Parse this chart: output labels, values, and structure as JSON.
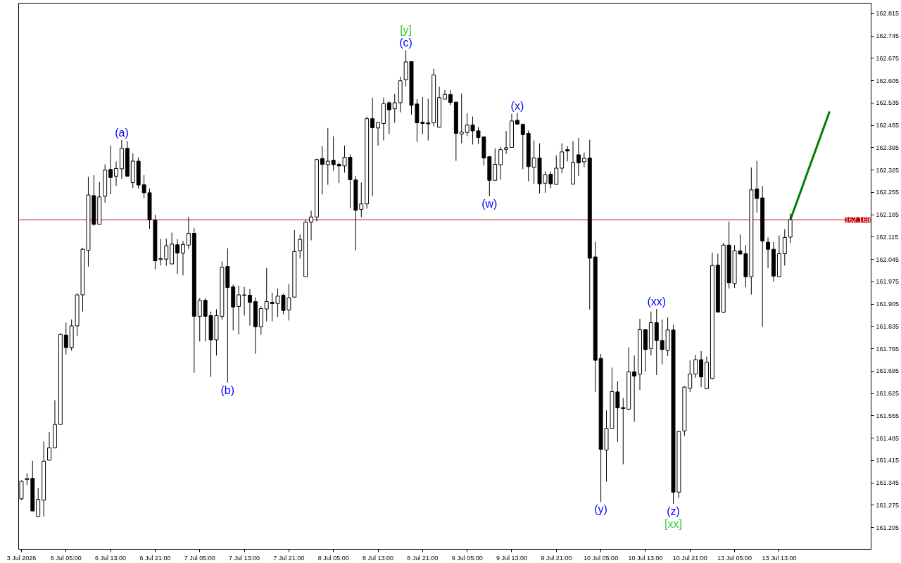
{
  "chart_data": {
    "type": "candlestick",
    "categories": [
      "3 Jul 2026",
      null,
      null,
      null,
      null,
      null,
      null,
      null,
      "6 Jul 05:00",
      null,
      null,
      null,
      null,
      null,
      null,
      null,
      "6 Jul 13:00",
      null,
      null,
      null,
      null,
      null,
      null,
      null,
      "6 Jul 21:00",
      null,
      null,
      null,
      null,
      null,
      null,
      null,
      "7 Jul 05:00",
      null,
      null,
      null,
      null,
      null,
      null,
      null,
      "7 Jul 13:00",
      null,
      null,
      null,
      null,
      null,
      null,
      null,
      "7 Jul 21:00",
      null,
      null,
      null,
      null,
      null,
      null,
      null,
      "8 Jul 05:00",
      null,
      null,
      null,
      null,
      null,
      null,
      null,
      "8 Jul 13:00",
      null,
      null,
      null,
      null,
      null,
      null,
      null,
      "8 Jul 21:00",
      null,
      null,
      null,
      null,
      null,
      null,
      null,
      "9 Jul 05:00",
      null,
      null,
      null,
      null,
      null,
      null,
      null,
      "9 Jul 13:00",
      null,
      null,
      null,
      null,
      null,
      null,
      null,
      "9 Jul 21:00",
      null,
      null,
      null,
      null,
      null,
      null,
      null,
      "10 Jul 05:00",
      null,
      null,
      null,
      null,
      null,
      null,
      null,
      "10 Jul 13:00",
      null,
      null,
      null,
      null,
      null,
      null,
      null,
      "10 Jul 21:00",
      null,
      null,
      null,
      null,
      null,
      null,
      null,
      "13 Jul 05:00",
      null,
      null,
      null,
      null,
      null,
      null,
      null,
      "13 Jul 13:00",
      null,
      null,
      null,
      null,
      null,
      null,
      null,
      null,
      null,
      null,
      null,
      null,
      null,
      null,
      null,
      null
    ],
    "color": "#000000",
    "ohlc": [
      [
        161.295,
        161.353,
        161.291,
        161.35
      ],
      [
        161.355,
        161.376,
        161.338,
        161.359
      ],
      [
        161.359,
        161.414,
        161.256,
        161.257
      ],
      [
        161.24,
        161.329,
        161.239,
        161.293
      ],
      [
        161.291,
        161.474,
        161.24,
        161.413
      ],
      [
        161.416,
        161.504,
        161.416,
        161.455
      ],
      [
        161.455,
        161.604,
        161.453,
        161.528
      ],
      [
        161.528,
        161.814,
        161.528,
        161.81
      ],
      [
        161.808,
        161.847,
        161.747,
        161.769
      ],
      [
        161.769,
        161.857,
        161.759,
        161.837
      ],
      [
        161.837,
        161.939,
        161.804,
        161.934
      ],
      [
        161.934,
        162.082,
        161.882,
        162.077
      ],
      [
        162.074,
        162.304,
        162.023,
        162.247
      ],
      [
        162.245,
        162.309,
        162.151,
        162.155
      ],
      [
        162.155,
        162.288,
        162.155,
        162.241
      ],
      [
        162.243,
        162.343,
        162.223,
        162.325
      ],
      [
        162.327,
        162.402,
        162.249,
        162.302
      ],
      [
        162.306,
        162.352,
        162.276,
        162.33
      ],
      [
        162.329,
        162.42,
        162.298,
        162.393
      ],
      [
        162.393,
        162.416,
        162.304,
        162.306
      ],
      [
        162.286,
        162.378,
        162.269,
        162.353
      ],
      [
        162.353,
        162.365,
        162.267,
        162.278
      ],
      [
        162.279,
        162.309,
        162.237,
        162.254
      ],
      [
        162.254,
        162.267,
        162.141,
        162.169
      ],
      [
        162.169,
        162.185,
        162.014,
        162.041
      ],
      [
        162.045,
        162.11,
        162.026,
        162.048
      ],
      [
        162.046,
        162.11,
        162.025,
        162.088
      ],
      [
        162.031,
        162.129,
        162.031,
        162.093
      ],
      [
        162.091,
        162.109,
        161.999,
        162.065
      ],
      [
        162.065,
        162.103,
        161.995,
        162.092
      ],
      [
        162.09,
        162.178,
        162.078,
        162.127
      ],
      [
        162.127,
        162.143,
        161.69,
        161.867
      ],
      [
        161.867,
        161.924,
        161.788,
        161.917
      ],
      [
        161.917,
        161.924,
        161.788,
        161.867
      ],
      [
        161.869,
        161.882,
        161.677,
        161.793
      ],
      [
        161.793,
        161.889,
        161.744,
        161.869
      ],
      [
        161.867,
        162.039,
        161.856,
        162.02
      ],
      [
        162.023,
        162.08,
        161.659,
        161.957
      ],
      [
        161.959,
        161.966,
        161.823,
        161.896
      ],
      [
        161.898,
        161.963,
        161.81,
        161.934
      ],
      [
        161.934,
        161.959,
        161.869,
        161.933
      ],
      [
        161.933,
        161.952,
        161.838,
        161.911
      ],
      [
        161.913,
        161.926,
        161.75,
        161.834
      ],
      [
        161.834,
        161.898,
        161.809,
        161.891
      ],
      [
        161.89,
        162.018,
        161.851,
        161.913
      ],
      [
        161.911,
        161.941,
        161.851,
        161.907
      ],
      [
        161.907,
        161.954,
        161.865,
        161.93
      ],
      [
        161.933,
        161.938,
        161.873,
        161.885
      ],
      [
        161.887,
        161.968,
        161.854,
        161.925
      ],
      [
        161.927,
        162.137,
        161.927,
        162.07
      ],
      [
        162.072,
        162.124,
        162.048,
        162.108
      ],
      [
        161.991,
        162.17,
        161.991,
        162.162
      ],
      [
        162.162,
        162.198,
        162.105,
        162.178
      ],
      [
        162.178,
        162.36,
        162.165,
        162.358
      ],
      [
        162.361,
        162.4,
        162.249,
        162.343
      ],
      [
        162.342,
        162.457,
        162.279,
        162.353
      ],
      [
        162.356,
        162.431,
        162.323,
        162.342
      ],
      [
        162.343,
        162.348,
        162.284,
        162.338
      ],
      [
        162.338,
        162.402,
        162.317,
        162.365
      ],
      [
        162.365,
        162.374,
        162.205,
        162.295
      ],
      [
        162.294,
        162.306,
        162.074,
        162.199
      ],
      [
        162.202,
        162.286,
        162.177,
        162.219
      ],
      [
        162.219,
        162.493,
        162.204,
        162.486
      ],
      [
        162.486,
        162.552,
        162.243,
        162.458
      ],
      [
        162.457,
        162.474,
        162.402,
        162.474
      ],
      [
        162.471,
        162.552,
        162.418,
        162.533
      ],
      [
        162.536,
        162.541,
        162.438,
        162.514
      ],
      [
        162.517,
        162.564,
        162.473,
        162.536
      ],
      [
        162.536,
        162.618,
        162.506,
        162.605
      ],
      [
        162.608,
        162.701,
        162.587,
        162.664
      ],
      [
        162.665,
        162.665,
        162.499,
        162.528
      ],
      [
        162.532,
        162.547,
        162.413,
        162.473
      ],
      [
        162.475,
        162.554,
        162.438,
        162.471
      ],
      [
        162.473,
        162.549,
        162.418,
        162.47
      ],
      [
        162.473,
        162.642,
        162.462,
        162.623
      ],
      [
        162.459,
        162.586,
        162.459,
        162.552
      ],
      [
        162.547,
        162.576,
        162.547,
        162.562
      ],
      [
        162.562,
        162.576,
        162.528,
        162.537
      ],
      [
        162.538,
        162.538,
        162.354,
        162.44
      ],
      [
        162.438,
        162.565,
        162.409,
        162.444
      ],
      [
        162.443,
        162.503,
        162.431,
        162.466
      ],
      [
        162.466,
        162.493,
        162.405,
        162.448
      ],
      [
        162.448,
        162.46,
        162.407,
        162.427
      ],
      [
        162.429,
        162.431,
        162.339,
        162.363
      ],
      [
        162.367,
        162.369,
        162.243,
        162.293
      ],
      [
        162.293,
        162.393,
        162.293,
        162.343
      ],
      [
        162.342,
        162.398,
        162.295,
        162.389
      ],
      [
        162.39,
        162.447,
        162.376,
        162.395
      ],
      [
        162.396,
        162.501,
        162.396,
        162.479
      ],
      [
        162.481,
        162.504,
        162.469,
        162.469
      ],
      [
        162.468,
        162.471,
        162.328,
        162.436
      ],
      [
        162.44,
        162.449,
        162.29,
        162.336
      ],
      [
        162.334,
        162.418,
        162.281,
        162.363
      ],
      [
        162.363,
        162.409,
        162.252,
        162.282
      ],
      [
        162.284,
        162.321,
        162.254,
        162.31
      ],
      [
        162.312,
        162.321,
        162.268,
        162.282
      ],
      [
        162.28,
        162.371,
        162.28,
        162.331
      ],
      [
        162.331,
        162.409,
        162.315,
        162.382
      ],
      [
        162.389,
        162.4,
        162.352,
        162.385
      ],
      [
        162.281,
        162.416,
        162.281,
        162.349
      ],
      [
        162.373,
        162.426,
        162.306,
        162.348
      ],
      [
        162.351,
        162.38,
        162.334,
        162.362
      ],
      [
        162.363,
        162.42,
        161.888,
        162.049
      ],
      [
        162.053,
        162.101,
        161.63,
        161.729
      ],
      [
        161.735,
        161.749,
        161.285,
        161.45
      ],
      [
        161.448,
        161.572,
        161.349,
        161.516
      ],
      [
        161.516,
        161.706,
        161.516,
        161.631
      ],
      [
        161.63,
        161.663,
        161.473,
        161.58
      ],
      [
        161.581,
        161.611,
        161.403,
        161.578
      ],
      [
        161.576,
        161.77,
        161.573,
        161.693
      ],
      [
        161.693,
        161.744,
        161.537,
        161.68
      ],
      [
        161.686,
        161.859,
        161.636,
        161.825
      ],
      [
        161.825,
        161.825,
        161.694,
        161.763
      ],
      [
        161.766,
        161.882,
        161.744,
        161.847
      ],
      [
        161.847,
        161.89,
        161.683,
        161.791
      ],
      [
        161.791,
        161.857,
        161.716,
        161.763
      ],
      [
        161.76,
        161.863,
        161.742,
        161.824
      ],
      [
        161.824,
        161.84,
        161.279,
        161.316
      ],
      [
        161.316,
        161.506,
        161.297,
        161.506
      ],
      [
        161.508,
        161.648,
        161.492,
        161.645
      ],
      [
        161.642,
        161.729,
        161.63,
        161.686
      ],
      [
        161.686,
        161.746,
        161.674,
        161.731
      ],
      [
        161.731,
        161.758,
        161.645,
        161.677
      ],
      [
        161.64,
        161.741,
        161.639,
        161.723
      ],
      [
        161.672,
        162.066,
        161.669,
        162.026
      ],
      [
        162.027,
        162.063,
        161.88,
        161.88
      ],
      [
        161.88,
        162.097,
        161.877,
        162.09
      ],
      [
        162.09,
        162.164,
        161.954,
        161.972
      ],
      [
        161.97,
        162.09,
        161.956,
        162.072
      ],
      [
        162.072,
        162.123,
        162.06,
        162.062
      ],
      [
        162.063,
        162.09,
        161.958,
        161.991
      ],
      [
        161.991,
        162.333,
        161.935,
        162.263
      ],
      [
        162.266,
        162.354,
        162.192,
        162.236
      ],
      [
        162.238,
        162.275,
        161.834,
        162.103
      ],
      [
        162.099,
        162.114,
        162.018,
        162.077
      ],
      [
        162.077,
        162.1,
        161.975,
        161.993
      ],
      [
        161.991,
        162.12,
        161.989,
        162.063
      ],
      [
        162.063,
        162.14,
        162.026,
        162.114
      ],
      [
        162.115,
        162.189,
        162.097,
        162.169
      ],
      null,
      null,
      null,
      null,
      null,
      null,
      null,
      null,
      null,
      null,
      null,
      null,
      null,
      null
    ],
    "series": [
      {
        "type": "line",
        "color": "#008000",
        "values": [
          null,
          null,
          null,
          null,
          null,
          null,
          null,
          null,
          null,
          null,
          null,
          null,
          null,
          null,
          null,
          null,
          null,
          null,
          null,
          null,
          null,
          null,
          null,
          null,
          null,
          null,
          null,
          null,
          null,
          null,
          null,
          null,
          null,
          null,
          null,
          null,
          null,
          null,
          null,
          null,
          null,
          null,
          null,
          null,
          null,
          null,
          null,
          null,
          null,
          null,
          null,
          null,
          null,
          null,
          null,
          null,
          null,
          null,
          null,
          null,
          null,
          null,
          null,
          null,
          null,
          null,
          null,
          null,
          null,
          null,
          null,
          null,
          null,
          null,
          null,
          null,
          null,
          null,
          null,
          null,
          null,
          null,
          null,
          null,
          null,
          null,
          null,
          null,
          null,
          null,
          null,
          null,
          null,
          null,
          null,
          null,
          null,
          null,
          null,
          null,
          null,
          null,
          null,
          null,
          null,
          null,
          null,
          null,
          null,
          null,
          null,
          null,
          null,
          null,
          null,
          null,
          null,
          null,
          null,
          null,
          null,
          null,
          null,
          null,
          null,
          null,
          null,
          null,
          null,
          null,
          null,
          null,
          null,
          null,
          null,
          null,
          null,
          null,
          162.169,
          162.217,
          162.265,
          162.314,
          162.362,
          162.41,
          162.458,
          162.506,
          null,
          null,
          null,
          null,
          null,
          null,
          null
        ]
      }
    ],
    "ylim": [
      161.137,
      162.848
    ],
    "yticks": [
      161.205,
      161.275,
      161.345,
      161.415,
      161.485,
      161.555,
      161.625,
      161.695,
      161.765,
      161.835,
      161.905,
      161.975,
      162.045,
      162.115,
      162.185,
      162.255,
      162.325,
      162.395,
      162.465,
      162.535,
      162.605,
      162.675,
      162.745,
      162.815
    ],
    "ref_lines": [
      {
        "axis": "y",
        "value": 162.169,
        "label": "162.169",
        "color": "#c00000"
      }
    ],
    "annotations": [
      {
        "text": "(a)",
        "y": 162.42
      },
      {
        "text": "(b)",
        "y": 161.659
      },
      {
        "text": "(c)",
        "y": 162.701
      },
      {
        "text": "[y]",
        "y": 162.701
      },
      {
        "text": "(w)",
        "y": 162.243
      },
      {
        "text": "(x)",
        "y": 162.504
      },
      {
        "text": "(y)",
        "y": 161.285
      },
      {
        "text": "(xx)",
        "y": 161.89
      },
      {
        "text": "(z)",
        "y": 161.279
      },
      {
        "text": "[xx]",
        "y": 161.279
      }
    ]
  }
}
